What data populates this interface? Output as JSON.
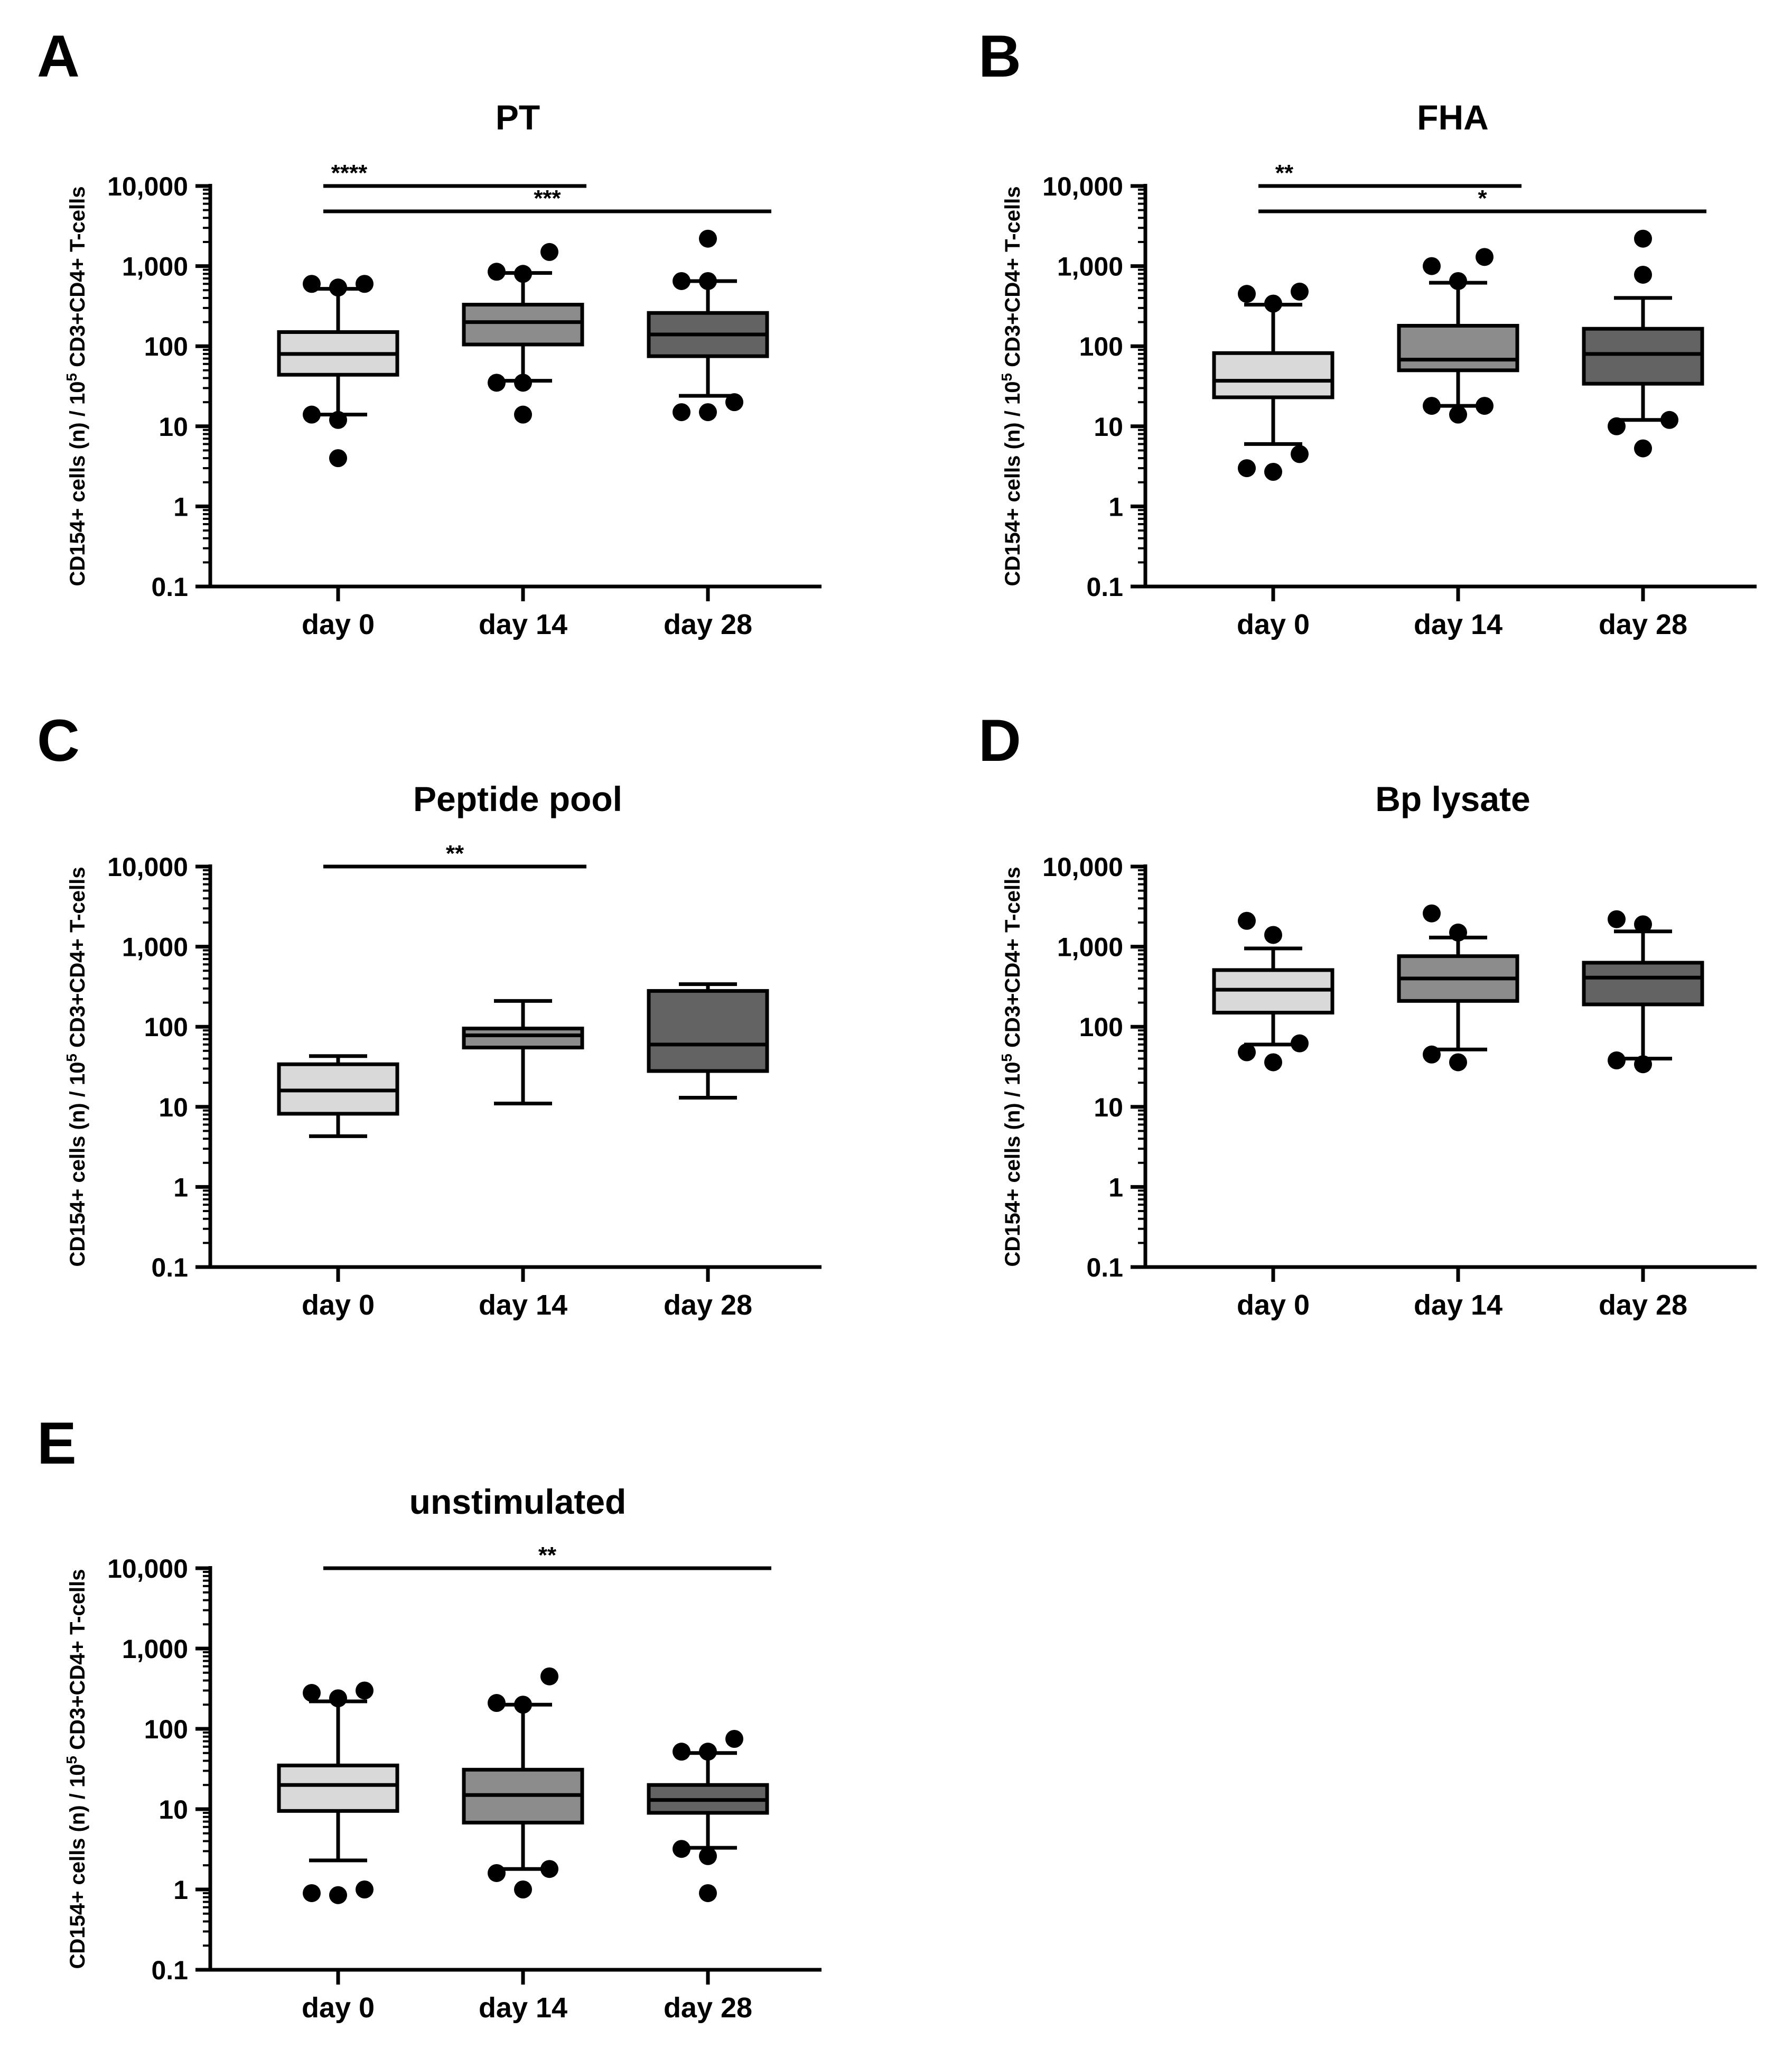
{
  "figure": {
    "y_axis": {
      "label_prefix": "CD154+ cells (n) / 10",
      "label_exponent": "5",
      "label_suffix": " CD3+CD4+ T-cells",
      "scale": "log",
      "ylim": [
        0.1,
        10000
      ],
      "ticks": [
        {
          "value": 10000,
          "label": "10,000"
        },
        {
          "value": 1000,
          "label": "1,000"
        },
        {
          "value": 100,
          "label": "100"
        },
        {
          "value": 10,
          "label": "10"
        },
        {
          "value": 1,
          "label": "1"
        },
        {
          "value": 0.1,
          "label": "0.1"
        }
      ]
    },
    "colors": {
      "day 0": "#d9d9d9",
      "day 14": "#8c8c8c",
      "day 28": "#636363"
    }
  },
  "chart_data": [
    {
      "panel": "A",
      "title": "PT",
      "type": "box",
      "categories": [
        "day 0",
        "day 14",
        "day 28"
      ],
      "boxes": [
        {
          "whisker_low": 14,
          "q1": 44,
          "median": 80,
          "q3": 150,
          "whisker_high": 520,
          "outliers": [
            4,
            12,
            14,
            540,
            600,
            600
          ]
        },
        {
          "whisker_low": 37,
          "q1": 105,
          "median": 200,
          "q3": 330,
          "whisker_high": 820,
          "outliers": [
            14,
            35,
            35,
            800,
            850,
            1500
          ]
        },
        {
          "whisker_low": 24,
          "q1": 75,
          "median": 140,
          "q3": 260,
          "whisker_high": 650,
          "outliers": [
            15,
            15,
            20,
            650,
            650,
            2200
          ]
        }
      ],
      "significance": [
        {
          "from": "day 0",
          "to": "day 14",
          "label": "****"
        },
        {
          "from": "day 0",
          "to": "day 28",
          "label": "***"
        }
      ]
    },
    {
      "panel": "B",
      "title": "FHA",
      "type": "box",
      "categories": [
        "day 0",
        "day 14",
        "day 28"
      ],
      "boxes": [
        {
          "whisker_low": 6,
          "q1": 23,
          "median": 37,
          "q3": 82,
          "whisker_high": 330,
          "outliers": [
            2.7,
            3,
            4.5,
            340,
            450,
            480
          ]
        },
        {
          "whisker_low": 18,
          "q1": 50,
          "median": 68,
          "q3": 180,
          "whisker_high": 620,
          "outliers": [
            14,
            18,
            18,
            650,
            1000,
            1300
          ]
        },
        {
          "whisker_low": 12,
          "q1": 34,
          "median": 80,
          "q3": 165,
          "whisker_high": 400,
          "outliers": [
            5.3,
            10,
            12,
            780,
            2200
          ]
        }
      ],
      "significance": [
        {
          "from": "day 0",
          "to": "day 14",
          "label": "**"
        },
        {
          "from": "day 0",
          "to": "day 28",
          "label": "*"
        }
      ]
    },
    {
      "panel": "C",
      "title": "Peptide pool",
      "type": "box",
      "categories": [
        "day 0",
        "day 14",
        "day 28"
      ],
      "boxes": [
        {
          "whisker_low": 4.3,
          "q1": 8.2,
          "median": 16,
          "q3": 34,
          "whisker_high": 43,
          "outliers": []
        },
        {
          "whisker_low": 11,
          "q1": 55,
          "median": 78,
          "q3": 95,
          "whisker_high": 210,
          "outliers": []
        },
        {
          "whisker_low": 13,
          "q1": 28,
          "median": 60,
          "q3": 280,
          "whisker_high": 340,
          "outliers": []
        }
      ],
      "significance": [
        {
          "from": "day 0",
          "to": "day 14",
          "label": "**"
        }
      ]
    },
    {
      "panel": "D",
      "title": "Bp lysate",
      "type": "box",
      "categories": [
        "day 0",
        "day 14",
        "day 28"
      ],
      "boxes": [
        {
          "whisker_low": 60,
          "q1": 150,
          "median": 290,
          "q3": 510,
          "whisker_high": 950,
          "outliers": [
            36,
            48,
            62,
            1400,
            2100
          ]
        },
        {
          "whisker_low": 52,
          "q1": 210,
          "median": 400,
          "q3": 760,
          "whisker_high": 1300,
          "outliers": [
            36,
            45,
            1500,
            2600
          ]
        },
        {
          "whisker_low": 40,
          "q1": 190,
          "median": 410,
          "q3": 630,
          "whisker_high": 1550,
          "outliers": [
            34,
            38,
            1900,
            2200
          ]
        }
      ],
      "significance": []
    },
    {
      "panel": "E",
      "title": "unstimulated",
      "type": "box",
      "categories": [
        "day 0",
        "day 14",
        "day 28"
      ],
      "boxes": [
        {
          "whisker_low": 2.3,
          "q1": 9.5,
          "median": 20,
          "q3": 35,
          "whisker_high": 220,
          "outliers": [
            0.85,
            0.9,
            1.0,
            240,
            280,
            300
          ]
        },
        {
          "whisker_low": 1.8,
          "q1": 6.8,
          "median": 15,
          "q3": 31,
          "whisker_high": 200,
          "outliers": [
            1.0,
            1.6,
            1.8,
            200,
            210,
            450
          ]
        },
        {
          "whisker_low": 3.3,
          "q1": 9.0,
          "median": 13,
          "q3": 20,
          "whisker_high": 50,
          "outliers": [
            0.9,
            2.6,
            3.2,
            52,
            52,
            75
          ]
        }
      ],
      "significance": [
        {
          "from": "day 0",
          "to": "day 28",
          "label": "**"
        }
      ]
    }
  ]
}
